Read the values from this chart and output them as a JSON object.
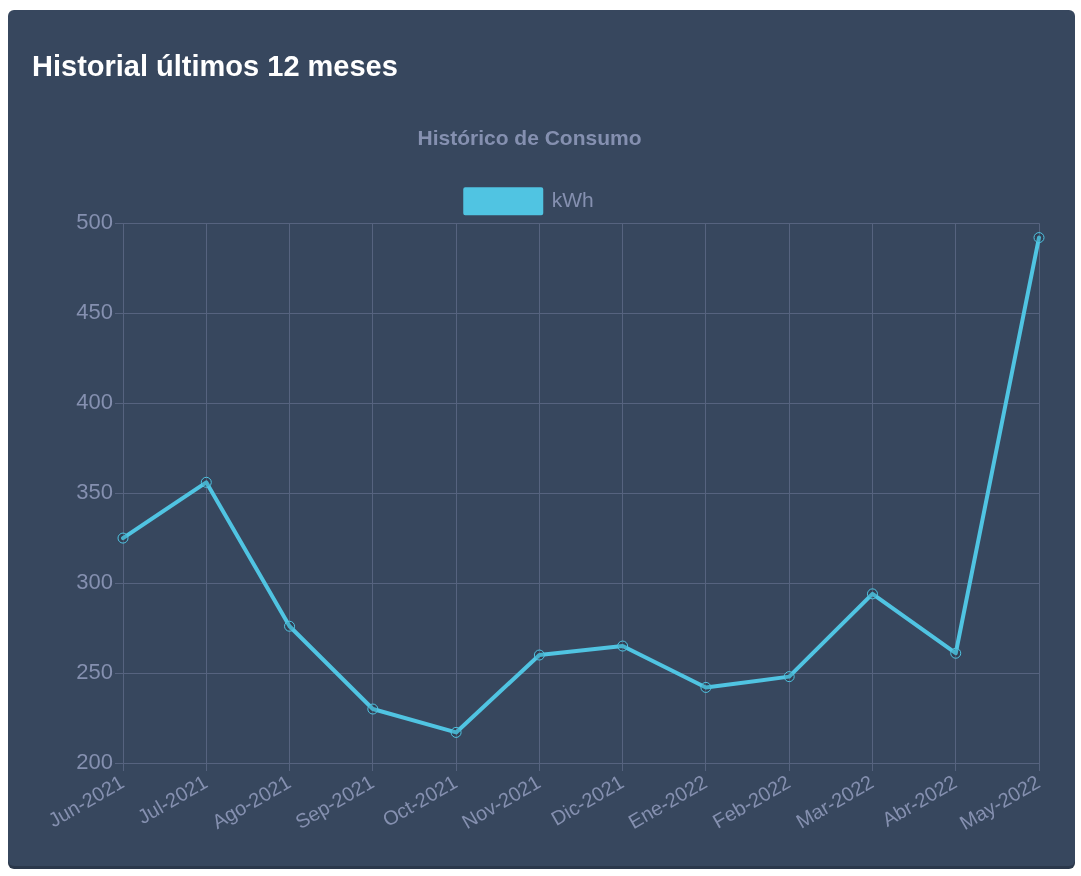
{
  "chart_data": {
    "type": "line",
    "title": "Historial últimos 12 meses",
    "subtitle": "Histórico de Consumo",
    "categories": [
      "Jun-2021",
      "Jul-2021",
      "Ago-2021",
      "Sep-2021",
      "Oct-2021",
      "Nov-2021",
      "Dic-2021",
      "Ene-2022",
      "Feb-2022",
      "Mar-2022",
      "Abr-2022",
      "May-2022"
    ],
    "series": [
      {
        "name": "kWh",
        "color": "#50c4e2",
        "values": [
          325,
          356,
          276,
          230,
          217,
          260,
          265,
          242,
          248,
          294,
          261,
          492
        ]
      }
    ],
    "ylim": [
      200,
      500
    ],
    "yticks": [
      200,
      250,
      300,
      350,
      400,
      450,
      500
    ],
    "grid": true,
    "legend": "top",
    "marker": "circle",
    "line_style": "solid"
  }
}
